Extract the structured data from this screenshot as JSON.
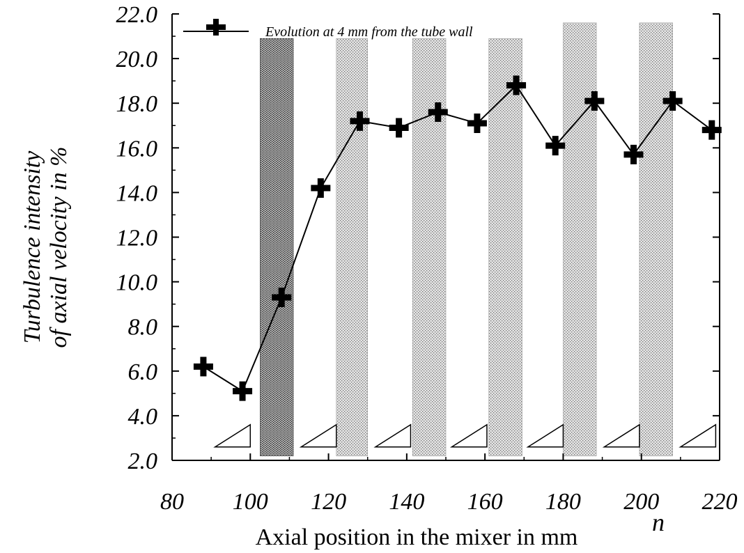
{
  "chart_data": {
    "type": "line",
    "title": "",
    "xlabel": "Axial position in the mixer in mm",
    "ylabel": [
      "Turbulence intensity",
      "of axial velocity in %"
    ],
    "corner_note": "n",
    "xlim": [
      80,
      220
    ],
    "ylim": [
      2.0,
      22.0
    ],
    "xticks": [
      80,
      100,
      120,
      140,
      160,
      180,
      200,
      220
    ],
    "yticks": [
      2.0,
      4.0,
      6.0,
      8.0,
      10.0,
      12.0,
      14.0,
      16.0,
      18.0,
      20.0,
      22.0
    ],
    "xtick_labels": [
      "80",
      "100",
      "120",
      "140",
      "160",
      "180",
      "200",
      "220"
    ],
    "ytick_labels": [
      "2.0",
      "4.0",
      "6.0",
      "8.0",
      "10.0",
      "12.0",
      "14.0",
      "16.0",
      "18.0",
      "20.0",
      "22.0"
    ],
    "grid": false,
    "legend_position": "top-left",
    "series": [
      {
        "name": "Evolution at 4 mm from the tube wall",
        "marker": "plus",
        "color": "#000000",
        "x": [
          88,
          98,
          108,
          118,
          128,
          138,
          148,
          158,
          168,
          178,
          188,
          198,
          208,
          218
        ],
        "y": [
          6.2,
          5.1,
          9.3,
          14.2,
          17.2,
          16.9,
          17.6,
          17.1,
          18.8,
          16.1,
          18.1,
          15.7,
          18.1,
          16.8
        ]
      }
    ],
    "shaded_regions": [
      {
        "x": [
          102.5,
          111.0
        ],
        "y": [
          2.2,
          20.9
        ],
        "pattern": "dense"
      },
      {
        "x": [
          122.0,
          130.0
        ],
        "y": [
          2.2,
          20.9
        ],
        "pattern": "light"
      },
      {
        "x": [
          141.5,
          150.0
        ],
        "y": [
          2.2,
          20.9
        ],
        "pattern": "light"
      },
      {
        "x": [
          161.0,
          169.5
        ],
        "y": [
          2.2,
          20.9
        ],
        "pattern": "light"
      },
      {
        "x": [
          180.0,
          188.5
        ],
        "y": [
          2.2,
          21.6
        ],
        "pattern": "light"
      },
      {
        "x": [
          199.5,
          208.0
        ],
        "y": [
          2.2,
          21.6
        ],
        "pattern": "light"
      }
    ],
    "triangle_markers": [
      {
        "x": [
          91.0,
          100.0
        ],
        "y": [
          2.6,
          3.6
        ]
      },
      {
        "x": [
          113.0,
          122.0
        ],
        "y": [
          2.6,
          3.6
        ]
      },
      {
        "x": [
          132.0,
          141.0
        ],
        "y": [
          2.6,
          3.6
        ]
      },
      {
        "x": [
          151.5,
          160.5
        ],
        "y": [
          2.6,
          3.6
        ]
      },
      {
        "x": [
          171.0,
          180.0
        ],
        "y": [
          2.6,
          3.6
        ]
      },
      {
        "x": [
          190.5,
          199.5
        ],
        "y": [
          2.6,
          3.6
        ]
      },
      {
        "x": [
          210.0,
          219.0
        ],
        "y": [
          2.6,
          3.6
        ]
      }
    ]
  }
}
